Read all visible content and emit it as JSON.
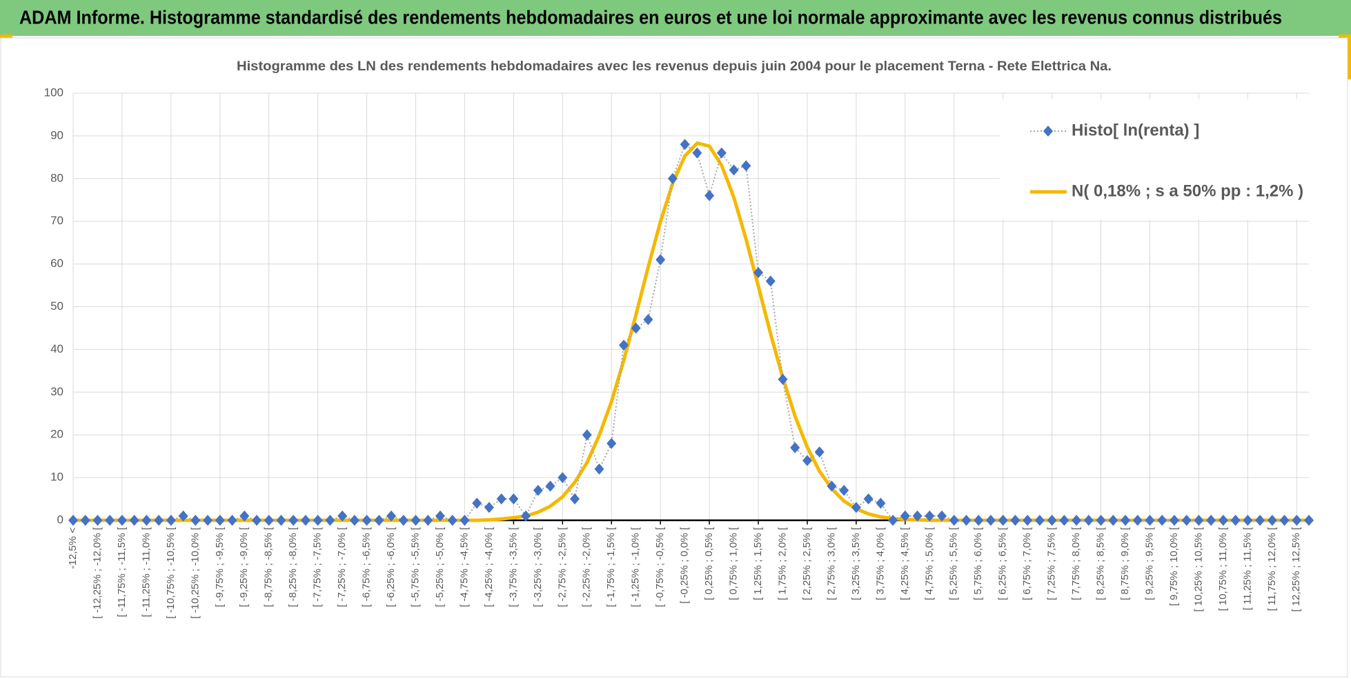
{
  "header": {
    "title": "ADAM Informe. Histogramme standardisé des rendements hebdomadaires en euros et une loi normale approximante avec les revenus connus distribués"
  },
  "chart_data": {
    "type": "line",
    "title": "Histogramme des LN des rendements hebdomadaires avec les revenus depuis juin 2004 pour le placement Terna - Rete Elettrica  Na.",
    "categories": [
      "-12,5% <",
      null,
      "[ -12,25% ; -12,0% [",
      null,
      "[ -11,75% ; -11,5% [",
      null,
      "[ -11,25% ; -11,0% [",
      null,
      "[ -10,75% ; -10,5% [",
      null,
      "[ -10,25% ; -10,0% [",
      null,
      "[ -9,75% ; -9,5% [",
      null,
      "[ -9,25% ; -9,0% [",
      null,
      "[ -8,75% ; -8,5% [",
      null,
      "[ -8,25% ; -8,0% [",
      null,
      "[ -7,75% ; -7,5% [",
      null,
      "[ -7,25% ; -7,0% [",
      null,
      "[ -6,75% ; -6,5% [",
      null,
      "[ -6,25% ; -6,0% [",
      null,
      "[ -5,75% ; -5,5% [",
      null,
      "[ -5,25% ; -5,0% [",
      null,
      "[ -4,75% ; -4,5% [",
      null,
      "[ -4,25% ; -4,0% [",
      null,
      "[ -3,75% ; -3,5% [",
      null,
      "[ -3,25% ; -3,0% [",
      null,
      "[ -2,75% ; -2,5% [",
      null,
      "[ -2,25% ; -2,0% [",
      null,
      "[ -1,75% ; -1,5% [",
      null,
      "[ -1,25% ; -1,0% [",
      null,
      "[ -0,75% ; -0,5% [",
      null,
      "[ -0,25% ; 0,0% [",
      null,
      "[ 0,25% ; 0,5% [",
      null,
      "[ 0,75% ; 1,0% [",
      null,
      "[ 1,25% ; 1,5% [",
      null,
      "[ 1,75% ; 2,0% [",
      null,
      "[ 2,25% ; 2,5% [",
      null,
      "[ 2,75% ; 3,0% [",
      null,
      "[ 3,25% ; 3,5% [",
      null,
      "[ 3,75% ; 4,0% [",
      null,
      "[ 4,25% ; 4,5% [",
      null,
      "[ 4,75% ; 5,0% [",
      null,
      "[ 5,25% ; 5,5% [",
      null,
      "[ 5,75% ; 6,0% [",
      null,
      "[ 6,25% ; 6,5% [",
      null,
      "[ 6,75% ; 7,0% [",
      null,
      "[ 7,25% ; 7,5% [",
      null,
      "[ 7,75% ; 8,0% [",
      null,
      "[ 8,25% ; 8,5% [",
      null,
      "[ 8,75% ; 9,0% [",
      null,
      "[ 9,25% ; 9,5% [",
      null,
      "[ 9,75% ; 10,0% [",
      null,
      "[ 10,25% ; 10,5% [",
      null,
      "[ 10,75% ; 11,0% [",
      null,
      "[ 11,25% ; 11,5% [",
      null,
      "[ 11,75% ; 12,0% [",
      null,
      "[ 12,25% ; 12,5% [",
      null
    ],
    "series": [
      {
        "name": "Histo[ ln(renta) ]",
        "color": "#4472c4",
        "marker": "diamond",
        "values": [
          0,
          0,
          0,
          0,
          0,
          0,
          0,
          0,
          0,
          1,
          0,
          0,
          0,
          0,
          1,
          0,
          0,
          0,
          0,
          0,
          0,
          0,
          1,
          0,
          0,
          0,
          1,
          0,
          0,
          0,
          1,
          0,
          0,
          4,
          3,
          5,
          5,
          1,
          7,
          8,
          10,
          5,
          20,
          12,
          18,
          41,
          45,
          47,
          61,
          80,
          88,
          86,
          76,
          86,
          82,
          83,
          58,
          56,
          33,
          17,
          14,
          16,
          8,
          7,
          3,
          5,
          4,
          0,
          1,
          1,
          1,
          1,
          0,
          0,
          0,
          0,
          0,
          0,
          0,
          0,
          0,
          0,
          0,
          0,
          0,
          0,
          0,
          0,
          0,
          0,
          0,
          0,
          0,
          0,
          0,
          0,
          0,
          0,
          0,
          0,
          0,
          0
        ]
      },
      {
        "name": "N( 0,18% ; s a 50% pp : 1,2% )",
        "color": "#f5b800",
        "values": [
          0,
          0,
          0,
          0,
          0,
          0,
          0,
          0,
          0,
          0,
          0,
          0,
          0,
          0,
          0,
          0,
          0,
          0,
          0,
          0,
          0,
          0,
          0,
          0,
          0,
          0,
          0,
          0,
          0,
          0,
          0,
          0,
          0,
          0,
          0.1,
          0.3,
          0.6,
          1.0,
          1.9,
          3.3,
          5.5,
          8.9,
          13.5,
          19.9,
          27.8,
          37.4,
          48.1,
          59.3,
          69.9,
          78.9,
          85.3,
          88.3,
          87.6,
          83.1,
          75.6,
          65.8,
          54.8,
          43.7,
          33.4,
          24.4,
          17.1,
          11.5,
          7.4,
          4.5,
          2.7,
          1.5,
          0.8,
          0.4,
          0.2,
          0.1,
          0,
          0,
          0,
          0,
          0,
          0,
          0,
          0,
          0,
          0,
          0,
          0,
          0,
          0,
          0,
          0,
          0,
          0,
          0,
          0,
          0,
          0,
          0,
          0,
          0,
          0,
          0,
          0,
          0,
          0,
          0,
          0
        ]
      }
    ],
    "ylim": [
      0,
      100
    ],
    "yticks": [
      0,
      10,
      20,
      30,
      40,
      50,
      60,
      70,
      80,
      90,
      100
    ],
    "grid": true,
    "legend": "upper right"
  }
}
